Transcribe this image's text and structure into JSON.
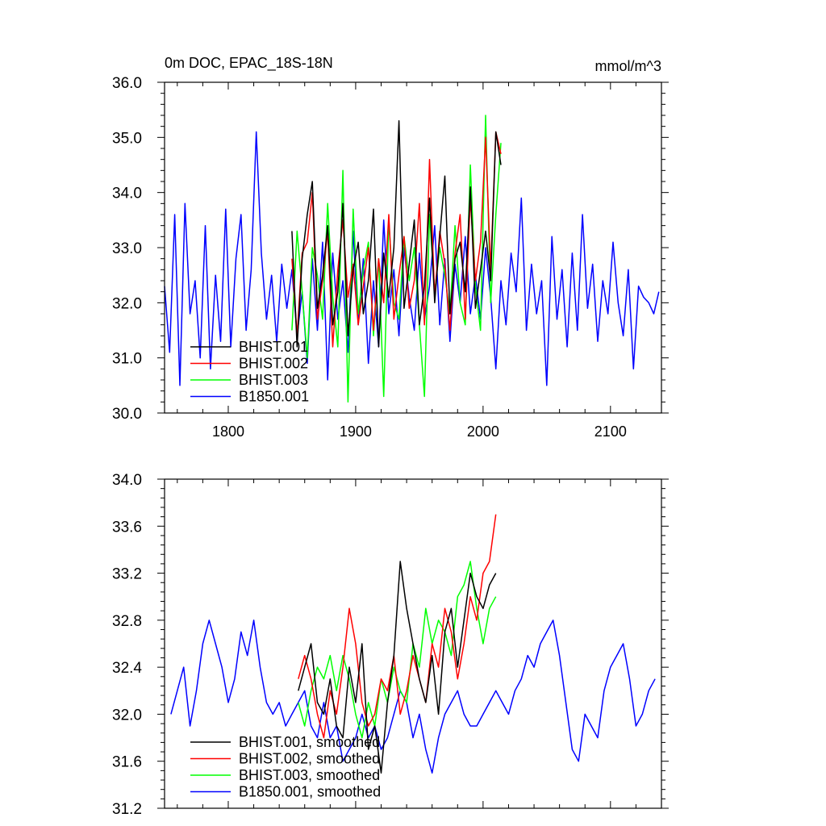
{
  "chart_data": [
    {
      "type": "line",
      "title": "0m DOC, EPAC_18S-18N",
      "units_label": "mmol/m^3",
      "xlabel": "",
      "ylabel": "",
      "xlim": [
        1750,
        2140
      ],
      "ylim": [
        30.0,
        36.0
      ],
      "x_ticks": [
        1800,
        1900,
        2000,
        2100
      ],
      "x_tick_labels": [
        "1800",
        "1900",
        "2000",
        "2100"
      ],
      "y_ticks": [
        30.0,
        31.0,
        32.0,
        33.0,
        34.0,
        35.0,
        36.0
      ],
      "y_tick_labels": [
        "30.0",
        "31.0",
        "32.0",
        "33.0",
        "34.0",
        "35.0",
        "36.0"
      ],
      "grid": false,
      "legend_position": "bottom-left",
      "series": [
        {
          "name": "BHIST.001",
          "color": "#000000",
          "x": [
            1850,
            1854,
            1858,
            1862,
            1866,
            1870,
            1874,
            1878,
            1882,
            1886,
            1890,
            1894,
            1898,
            1902,
            1906,
            1910,
            1914,
            1918,
            1922,
            1926,
            1930,
            1934,
            1938,
            1942,
            1946,
            1950,
            1954,
            1958,
            1962,
            1966,
            1970,
            1974,
            1978,
            1982,
            1986,
            1990,
            1994,
            1998,
            2002,
            2006,
            2010,
            2014
          ],
          "values": [
            33.3,
            31.2,
            32.8,
            33.6,
            34.2,
            31.9,
            32.5,
            33.4,
            31.6,
            32.2,
            33.8,
            31.4,
            32.6,
            33.1,
            31.8,
            32.4,
            33.7,
            31.2,
            32.9,
            32.1,
            33.0,
            35.3,
            31.9,
            32.7,
            33.5,
            31.6,
            32.3,
            33.9,
            32.0,
            33.2,
            34.3,
            31.8,
            32.8,
            33.1,
            32.2,
            34.1,
            31.9,
            32.6,
            33.3,
            32.4,
            35.1,
            34.5
          ]
        },
        {
          "name": "BHIST.002",
          "color": "#ff0000",
          "x": [
            1850,
            1854,
            1858,
            1862,
            1866,
            1870,
            1874,
            1878,
            1882,
            1886,
            1890,
            1894,
            1898,
            1902,
            1906,
            1910,
            1914,
            1918,
            1922,
            1926,
            1930,
            1934,
            1938,
            1942,
            1946,
            1950,
            1954,
            1958,
            1962,
            1966,
            1970,
            1974,
            1978,
            1982,
            1986,
            1990,
            1994,
            1998,
            2002,
            2006,
            2010,
            2014
          ],
          "values": [
            32.8,
            31.4,
            32.9,
            33.1,
            34.0,
            31.7,
            32.4,
            33.3,
            31.2,
            32.6,
            33.5,
            32.1,
            32.7,
            31.6,
            32.3,
            33.0,
            31.5,
            32.8,
            32.0,
            33.6,
            31.7,
            32.5,
            33.2,
            31.9,
            32.4,
            33.8,
            31.6,
            34.6,
            32.1,
            33.3,
            32.7,
            31.5,
            32.9,
            33.6,
            31.7,
            33.9,
            32.4,
            33.1,
            35.0,
            32.6,
            35.1,
            34.7
          ]
        },
        {
          "name": "BHIST.003",
          "color": "#00ff00",
          "x": [
            1850,
            1854,
            1858,
            1862,
            1866,
            1870,
            1874,
            1878,
            1882,
            1886,
            1890,
            1894,
            1898,
            1902,
            1906,
            1910,
            1914,
            1918,
            1922,
            1926,
            1930,
            1934,
            1938,
            1942,
            1946,
            1950,
            1954,
            1958,
            1962,
            1966,
            1970,
            1974,
            1978,
            1982,
            1986,
            1990,
            1994,
            1998,
            2002,
            2006,
            2010,
            2014
          ],
          "values": [
            31.5,
            33.3,
            32.2,
            31.0,
            33.0,
            32.5,
            31.7,
            33.8,
            32.1,
            31.2,
            34.4,
            30.2,
            33.7,
            31.8,
            32.6,
            33.1,
            31.4,
            32.8,
            30.3,
            33.5,
            32.0,
            31.7,
            33.2,
            32.4,
            33.0,
            31.6,
            30.3,
            33.6,
            32.2,
            33.0,
            32.5,
            31.8,
            33.4,
            32.0,
            31.6,
            34.5,
            32.3,
            31.5,
            35.4,
            32.0,
            33.6,
            34.9
          ]
        },
        {
          "name": "B1850.001",
          "color": "#0000ff",
          "x": [
            1750,
            1754,
            1758,
            1762,
            1766,
            1770,
            1774,
            1778,
            1782,
            1786,
            1790,
            1794,
            1798,
            1802,
            1806,
            1810,
            1814,
            1818,
            1822,
            1826,
            1830,
            1834,
            1838,
            1842,
            1846,
            1850,
            1854,
            1858,
            1862,
            1866,
            1870,
            1874,
            1878,
            1882,
            1886,
            1890,
            1894,
            1898,
            1902,
            1906,
            1910,
            1914,
            1918,
            1922,
            1926,
            1930,
            1934,
            1938,
            1942,
            1946,
            1950,
            1954,
            1958,
            1962,
            1966,
            1970,
            1974,
            1978,
            1982,
            1986,
            1990,
            1994,
            1998,
            2002,
            2006,
            2010,
            2014,
            2018,
            2022,
            2026,
            2030,
            2034,
            2038,
            2042,
            2046,
            2050,
            2054,
            2058,
            2062,
            2066,
            2070,
            2074,
            2078,
            2082,
            2086,
            2090,
            2094,
            2098,
            2102,
            2106,
            2110,
            2114,
            2118,
            2122,
            2126,
            2130,
            2134,
            2138
          ],
          "values": [
            32.3,
            31.1,
            33.6,
            30.5,
            33.8,
            31.8,
            32.4,
            31.0,
            33.4,
            30.8,
            32.5,
            31.3,
            33.7,
            31.2,
            32.8,
            33.6,
            31.5,
            32.6,
            35.1,
            32.9,
            31.7,
            32.5,
            31.3,
            32.7,
            31.9,
            32.6,
            31.4,
            32.2,
            30.9,
            32.8,
            31.5,
            33.1,
            30.6,
            32.9,
            31.7,
            32.4,
            31.1,
            33.3,
            31.6,
            32.8,
            30.9,
            32.4,
            31.2,
            33.5,
            31.8,
            32.6,
            31.4,
            33.0,
            32.1,
            31.5,
            32.9,
            31.7,
            32.3,
            33.4,
            31.6,
            32.8,
            31.3,
            32.7,
            32.0,
            33.2,
            31.8,
            32.5,
            31.7,
            33.0,
            32.1,
            30.8,
            32.4,
            31.6,
            32.9,
            32.2,
            33.9,
            31.5,
            32.7,
            31.8,
            32.4,
            30.5,
            33.2,
            31.7,
            32.6,
            31.2,
            32.9,
            31.5,
            33.6,
            31.9,
            32.7,
            31.3,
            32.4,
            31.8,
            33.1,
            32.0,
            31.4,
            32.6,
            30.8,
            32.3,
            32.1,
            32.0,
            31.8,
            32.2
          ]
        }
      ]
    },
    {
      "type": "line",
      "title": "",
      "xlabel": "",
      "ylabel": "",
      "xlim": [
        1750,
        2140
      ],
      "ylim": [
        31.2,
        34.0
      ],
      "x_ticks": [
        1800,
        1900,
        2000,
        2100
      ],
      "y_ticks": [
        31.2,
        31.6,
        32.0,
        32.4,
        32.8,
        33.2,
        33.6,
        34.0
      ],
      "y_tick_labels": [
        "31.2",
        "31.6",
        "32.0",
        "32.4",
        "32.8",
        "33.2",
        "33.6",
        "34.0"
      ],
      "grid": false,
      "legend_position": "bottom-left",
      "series": [
        {
          "name": "BHIST.001, smoothed",
          "color": "#000000",
          "x": [
            1855,
            1860,
            1865,
            1870,
            1875,
            1880,
            1885,
            1890,
            1895,
            1900,
            1905,
            1910,
            1915,
            1920,
            1925,
            1930,
            1935,
            1940,
            1945,
            1950,
            1955,
            1960,
            1965,
            1970,
            1975,
            1980,
            1985,
            1990,
            1995,
            2000,
            2005,
            2010
          ],
          "values": [
            32.2,
            32.4,
            32.6,
            32.1,
            32.0,
            32.3,
            31.9,
            31.8,
            32.4,
            32.1,
            32.6,
            31.7,
            31.9,
            31.5,
            32.1,
            32.5,
            33.3,
            32.9,
            32.6,
            32.3,
            32.1,
            32.5,
            32.0,
            32.7,
            32.9,
            32.4,
            32.8,
            33.2,
            33.0,
            32.9,
            33.1,
            33.2
          ]
        },
        {
          "name": "BHIST.002, smoothed",
          "color": "#ff0000",
          "x": [
            1855,
            1860,
            1865,
            1870,
            1875,
            1880,
            1885,
            1890,
            1895,
            1900,
            1905,
            1910,
            1915,
            1920,
            1925,
            1930,
            1935,
            1940,
            1945,
            1950,
            1955,
            1960,
            1965,
            1970,
            1975,
            1980,
            1985,
            1990,
            1995,
            2000,
            2005,
            2010
          ],
          "values": [
            32.3,
            32.5,
            32.3,
            32.0,
            31.8,
            32.2,
            32.0,
            32.4,
            32.9,
            32.6,
            32.1,
            31.9,
            32.0,
            32.3,
            32.2,
            32.5,
            32.0,
            32.2,
            32.5,
            32.3,
            32.1,
            32.6,
            32.4,
            32.9,
            32.7,
            32.3,
            32.6,
            33.0,
            32.8,
            33.2,
            33.3,
            33.7
          ]
        },
        {
          "name": "BHIST.003, smoothed",
          "color": "#00ff00",
          "x": [
            1855,
            1860,
            1865,
            1870,
            1875,
            1880,
            1885,
            1890,
            1895,
            1900,
            1905,
            1910,
            1915,
            1920,
            1925,
            1930,
            1935,
            1940,
            1945,
            1950,
            1955,
            1960,
            1965,
            1970,
            1975,
            1980,
            1985,
            1990,
            1995,
            2000,
            2005,
            2010
          ],
          "values": [
            32.1,
            31.9,
            32.2,
            32.4,
            32.3,
            32.5,
            32.2,
            32.5,
            32.3,
            32.0,
            31.8,
            32.1,
            31.9,
            32.3,
            32.1,
            32.4,
            32.2,
            32.1,
            32.6,
            32.4,
            32.9,
            32.6,
            32.8,
            32.7,
            32.5,
            33.0,
            33.1,
            33.3,
            32.9,
            32.6,
            32.9,
            33.0
          ]
        },
        {
          "name": "B1850.001, smoothed",
          "color": "#0000ff",
          "x": [
            1755,
            1760,
            1765,
            1770,
            1775,
            1780,
            1785,
            1790,
            1795,
            1800,
            1805,
            1810,
            1815,
            1820,
            1825,
            1830,
            1835,
            1840,
            1845,
            1850,
            1855,
            1860,
            1865,
            1870,
            1875,
            1880,
            1885,
            1890,
            1895,
            1900,
            1905,
            1910,
            1915,
            1920,
            1925,
            1930,
            1935,
            1940,
            1945,
            1950,
            1955,
            1960,
            1965,
            1970,
            1975,
            1980,
            1985,
            1990,
            1995,
            2000,
            2005,
            2010,
            2015,
            2020,
            2025,
            2030,
            2035,
            2040,
            2045,
            2050,
            2055,
            2060,
            2065,
            2070,
            2075,
            2080,
            2085,
            2090,
            2095,
            2100,
            2105,
            2110,
            2115,
            2120,
            2125,
            2130,
            2135
          ],
          "values": [
            32.0,
            32.2,
            32.4,
            31.9,
            32.2,
            32.6,
            32.8,
            32.6,
            32.4,
            32.1,
            32.3,
            32.7,
            32.5,
            32.8,
            32.4,
            32.1,
            32.0,
            32.1,
            31.9,
            32.0,
            32.1,
            32.2,
            31.9,
            31.8,
            32.1,
            31.8,
            31.9,
            31.6,
            31.7,
            31.8,
            32.0,
            31.8,
            31.9,
            31.7,
            31.8,
            32.0,
            32.2,
            32.1,
            31.8,
            32.0,
            31.7,
            31.5,
            31.8,
            32.0,
            32.1,
            32.2,
            32.0,
            31.9,
            31.9,
            32.0,
            32.1,
            32.2,
            32.1,
            32.0,
            32.2,
            32.3,
            32.5,
            32.4,
            32.6,
            32.7,
            32.8,
            32.5,
            32.1,
            31.7,
            31.6,
            32.0,
            31.9,
            31.8,
            32.2,
            32.4,
            32.5,
            32.6,
            32.3,
            31.9,
            32.0,
            32.2,
            32.3
          ]
        }
      ]
    }
  ]
}
